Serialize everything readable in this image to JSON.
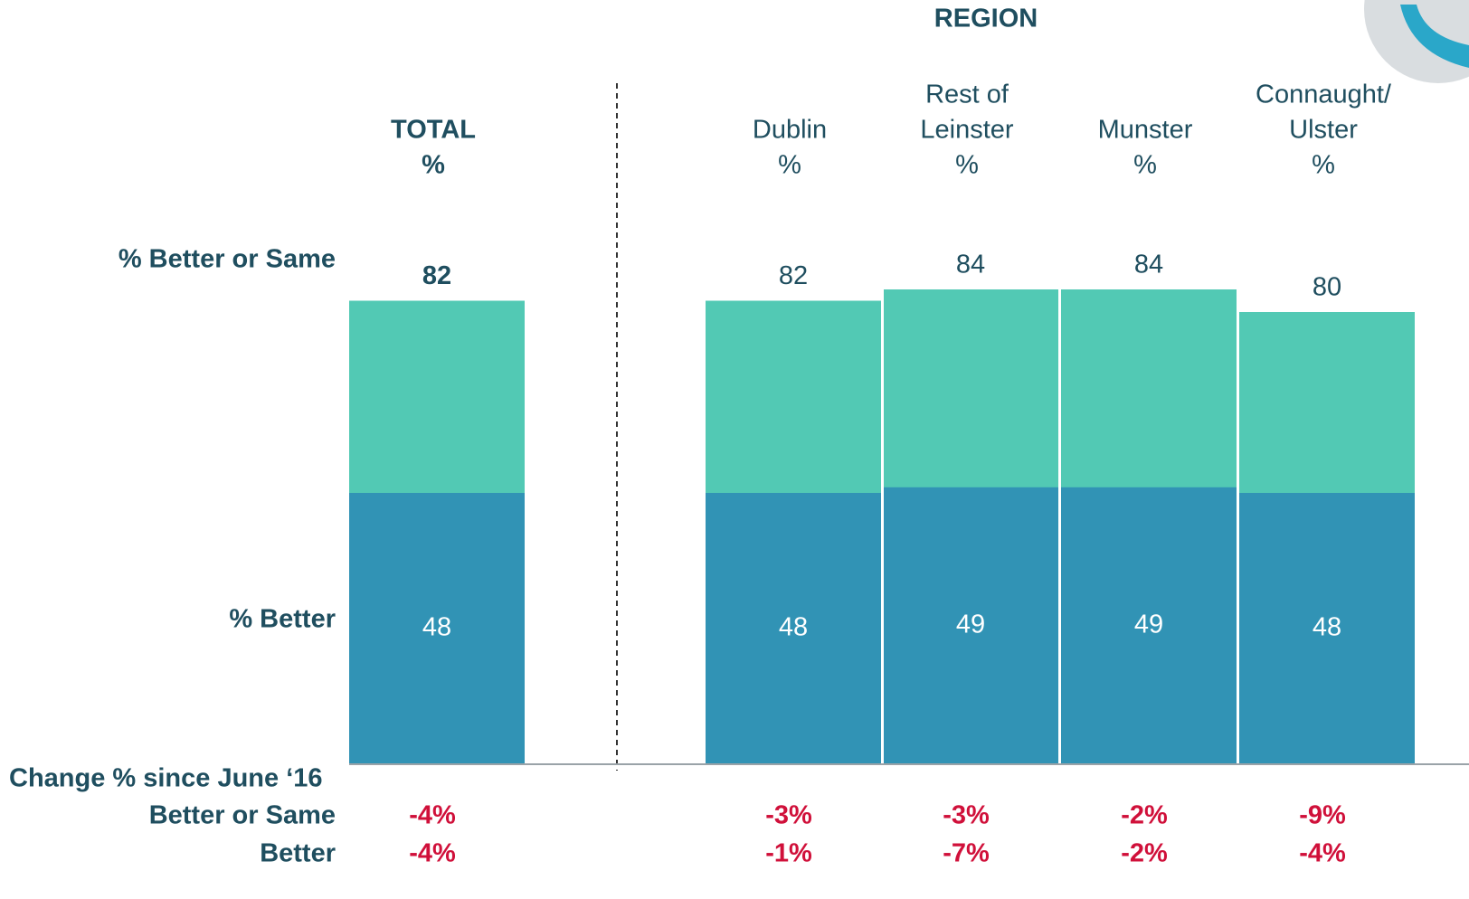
{
  "chart_data": {
    "type": "bar",
    "group_title": "REGION",
    "categories": [
      [
        "TOTAL",
        "%"
      ],
      [
        "Dublin",
        "%"
      ],
      [
        "Rest of",
        "Leinster",
        "%"
      ],
      [
        "Munster",
        "%"
      ],
      [
        "Connaught/",
        "Ulster",
        "%"
      ]
    ],
    "series": [
      {
        "name": "% Better or Same",
        "color": "#52c9b4",
        "values": [
          82,
          82,
          84,
          84,
          80
        ]
      },
      {
        "name": "% Better",
        "color": "#3193b5",
        "values": [
          48,
          48,
          49,
          49,
          48
        ]
      }
    ],
    "ylim": [
      0,
      100
    ],
    "change_title": "Change % since June ‘16",
    "change_rows": [
      {
        "label": "Better or Same",
        "values": [
          "-4%",
          "-3%",
          "-3%",
          "-2%",
          "-9%"
        ]
      },
      {
        "label": "Better",
        "values": [
          "-4%",
          "-1%",
          "-7%",
          "-2%",
          "-4%"
        ]
      }
    ]
  }
}
